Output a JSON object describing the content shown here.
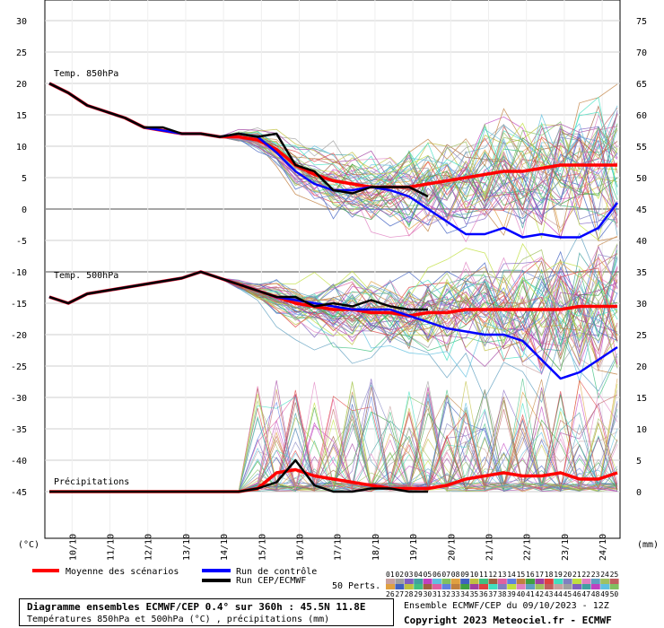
{
  "chart_data": {
    "type": "line",
    "panels": [
      {
        "label": "Temp. 850hPa"
      },
      {
        "label": "Temp. 500hPa"
      },
      {
        "label": "Précipitations"
      }
    ],
    "left_axis_unit": "(°C)",
    "right_axis_unit": "(mm)",
    "left_ticks": [
      30,
      25,
      20,
      15,
      10,
      5,
      0,
      -5,
      -10,
      -15,
      -20,
      -25,
      -30,
      -35,
      -40,
      -45
    ],
    "right_ticks": [
      75,
      70,
      65,
      60,
      55,
      50,
      45,
      40,
      35,
      30,
      25,
      20,
      15,
      10,
      5,
      0
    ],
    "x_ticks": [
      "10/10",
      "11/10",
      "12/10",
      "13/10",
      "14/10",
      "15/10",
      "16/10",
      "17/10",
      "18/10",
      "19/10",
      "20/10",
      "21/10",
      "22/10",
      "23/10",
      "24/10"
    ],
    "x_range_days": [
      0,
      15
    ],
    "series": [
      {
        "name": "Moyenne des scénarios",
        "color": "#ff0000",
        "panel": "t850",
        "x": [
          0,
          0.5,
          1,
          1.5,
          2,
          2.5,
          3,
          3.5,
          4,
          4.5,
          5,
          5.5,
          6,
          6.5,
          7,
          7.5,
          8,
          8.5,
          9,
          9.5,
          10,
          10.5,
          11,
          11.5,
          12,
          12.5,
          13,
          13.5,
          14,
          14.5,
          15
        ],
        "y": [
          20,
          18.5,
          16.5,
          15.5,
          14.5,
          13,
          12.5,
          12,
          12,
          11.5,
          11.5,
          11,
          9.5,
          7,
          5.5,
          4.5,
          4,
          3.5,
          3.5,
          3.5,
          4,
          4.5,
          5,
          5.5,
          6,
          6,
          6.5,
          7,
          7,
          7,
          7
        ]
      },
      {
        "name": "Run de contrôle",
        "color": "#0000ff",
        "panel": "t850",
        "x": [
          0,
          0.5,
          1,
          1.5,
          2,
          2.5,
          3,
          3.5,
          4,
          4.5,
          5,
          5.5,
          6,
          6.5,
          7,
          7.5,
          8,
          8.5,
          9,
          9.5,
          10,
          10.5,
          11,
          11.5,
          12,
          12.5,
          13,
          13.5,
          14,
          14.5,
          15
        ],
        "y": [
          20,
          18.5,
          16.5,
          15.5,
          14.5,
          13,
          12.5,
          12,
          12,
          11.5,
          12,
          11.5,
          9,
          6,
          4,
          3,
          3,
          3.5,
          3,
          2,
          0,
          -2,
          -4,
          -4,
          -3,
          -4.5,
          -4,
          -4.5,
          -4.5,
          -3,
          1
        ]
      },
      {
        "name": "Run CEP/ECMWF",
        "color": "#000000",
        "panel": "t850",
        "x": [
          0,
          0.5,
          1,
          1.5,
          2,
          2.5,
          3,
          3.5,
          4,
          4.5,
          5,
          5.5,
          6,
          6.5,
          7,
          7.5,
          8,
          8.5,
          9,
          9.5,
          10
        ],
        "y": [
          20,
          18.5,
          16.5,
          15.5,
          14.5,
          13,
          13,
          12,
          12,
          11.5,
          12,
          11.5,
          12,
          7,
          6,
          3,
          2.5,
          3.5,
          3.5,
          3.5,
          2
        ]
      },
      {
        "name": "Moyenne des scénarios",
        "color": "#ff0000",
        "panel": "t500",
        "x": [
          0,
          0.5,
          1,
          1.5,
          2,
          2.5,
          3,
          3.5,
          4,
          4.5,
          5,
          5.5,
          6,
          6.5,
          7,
          7.5,
          8,
          8.5,
          9,
          9.5,
          10,
          10.5,
          11,
          11.5,
          12,
          12.5,
          13,
          13.5,
          14,
          14.5,
          15
        ],
        "y": [
          -14,
          -15,
          -13.5,
          -13,
          -12.5,
          -12,
          -11.5,
          -11,
          -10,
          -11,
          -12,
          -13,
          -14,
          -15,
          -15.5,
          -16,
          -16,
          -16.5,
          -16.5,
          -17,
          -16.5,
          -16.5,
          -16,
          -16,
          -16,
          -16,
          -16,
          -16,
          -15.5,
          -15.5,
          -15.5
        ]
      },
      {
        "name": "Run de contrôle",
        "color": "#0000ff",
        "panel": "t500",
        "x": [
          0,
          0.5,
          1,
          1.5,
          2,
          2.5,
          3,
          3.5,
          4,
          4.5,
          5,
          5.5,
          6,
          6.5,
          7,
          7.5,
          8,
          8.5,
          9,
          9.5,
          10,
          10.5,
          11,
          11.5,
          12,
          12.5,
          13,
          13.5,
          14,
          14.5,
          15
        ],
        "y": [
          -14,
          -15,
          -13.5,
          -13,
          -12.5,
          -12,
          -11.5,
          -11,
          -10,
          -11,
          -12,
          -13,
          -14,
          -14.5,
          -15,
          -15.5,
          -16,
          -16,
          -16,
          -17,
          -18,
          -19,
          -19.5,
          -20,
          -20,
          -21,
          -24,
          -27,
          -26,
          -24,
          -22
        ]
      },
      {
        "name": "Run CEP/ECMWF",
        "color": "#000000",
        "panel": "t500",
        "x": [
          0,
          0.5,
          1,
          1.5,
          2,
          2.5,
          3,
          3.5,
          4,
          4.5,
          5,
          5.5,
          6,
          6.5,
          7,
          7.5,
          8,
          8.5,
          9,
          9.5,
          10
        ],
        "y": [
          -14,
          -15,
          -13.5,
          -13,
          -12.5,
          -12,
          -11.5,
          -11,
          -10,
          -11,
          -12,
          -13,
          -14,
          -14,
          -15.5,
          -15,
          -15.5,
          -14.5,
          -15.5,
          -16,
          -16
        ]
      },
      {
        "name": "Moyenne des scénarios",
        "color": "#ff0000",
        "panel": "precip",
        "x": [
          0,
          0.5,
          1,
          1.5,
          2,
          2.5,
          3,
          3.5,
          4,
          4.5,
          5,
          5.5,
          6,
          6.5,
          7,
          7.5,
          8,
          8.5,
          9,
          9.5,
          10,
          10.5,
          11,
          11.5,
          12,
          12.5,
          13,
          13.5,
          14,
          14.5,
          15
        ],
        "y": [
          0,
          0,
          0,
          0,
          0,
          0,
          0,
          0,
          0,
          0,
          0,
          0.5,
          3,
          3.5,
          2.5,
          2,
          1.5,
          1,
          0.5,
          0.5,
          0.5,
          1,
          2,
          2.5,
          3,
          2.5,
          2.5,
          3,
          2,
          2,
          3
        ]
      },
      {
        "name": "Run CEP/ECMWF",
        "color": "#000000",
        "panel": "precip",
        "x": [
          0,
          0.5,
          1,
          1.5,
          2,
          2.5,
          3,
          3.5,
          4,
          4.5,
          5,
          5.5,
          6,
          6.5,
          7,
          7.5,
          8,
          8.5,
          9,
          9.5,
          10
        ],
        "y": [
          0,
          0,
          0,
          0,
          0,
          0,
          0,
          0,
          0,
          0,
          0,
          0.5,
          1.5,
          5,
          1,
          0,
          0,
          0.5,
          0.5,
          0,
          0
        ]
      }
    ],
    "perturbations_count": 50
  },
  "legend": {
    "mean": "Moyenne des scénarios",
    "control": "Run de contrôle",
    "ecmwf": "Run CEP/ECMWF",
    "perts": "50 Perts.",
    "colors": {
      "mean": "#ff0000",
      "control": "#0000ff",
      "ecmwf": "#000000"
    }
  },
  "pert_swatches": {
    "row1_labels": [
      "01",
      "02",
      "03",
      "04",
      "05",
      "06",
      "07",
      "08",
      "09",
      "10",
      "11",
      "12",
      "13",
      "14",
      "15",
      "16",
      "17",
      "18",
      "19",
      "20",
      "21",
      "22",
      "23",
      "24",
      "25"
    ],
    "row2_labels": [
      "26",
      "27",
      "28",
      "29",
      "30",
      "31",
      "32",
      "33",
      "34",
      "35",
      "36",
      "37",
      "38",
      "39",
      "40",
      "41",
      "42",
      "43",
      "44",
      "45",
      "46",
      "47",
      "48",
      "49",
      "50"
    ],
    "colors": [
      "#c8a0a0",
      "#a0a0a0",
      "#8060c0",
      "#40a0a0",
      "#c040c0",
      "#60c0e0",
      "#80c060",
      "#e0a040",
      "#4060c0",
      "#c0c040",
      "#40c080",
      "#a06040",
      "#e060a0",
      "#6080e0",
      "#c08040",
      "#40a040",
      "#a040a0",
      "#e04040",
      "#40e0c0",
      "#8080c0",
      "#c0e040",
      "#e080c0",
      "#60a0c0",
      "#a0c060",
      "#c06060"
    ]
  },
  "footer": {
    "title": "Diagramme ensembles ECMWF/CEP 0.4° sur 360h : 45.5N 11.8E",
    "subtitle": "Températures 850hPa et 500hPa (°C) , précipitations (mm)",
    "run_info": "Ensemble ECMWF/CEP du 09/10/2023 - 12Z",
    "copyright": "Copyright 2023 Meteociel.fr - ECMWF"
  }
}
